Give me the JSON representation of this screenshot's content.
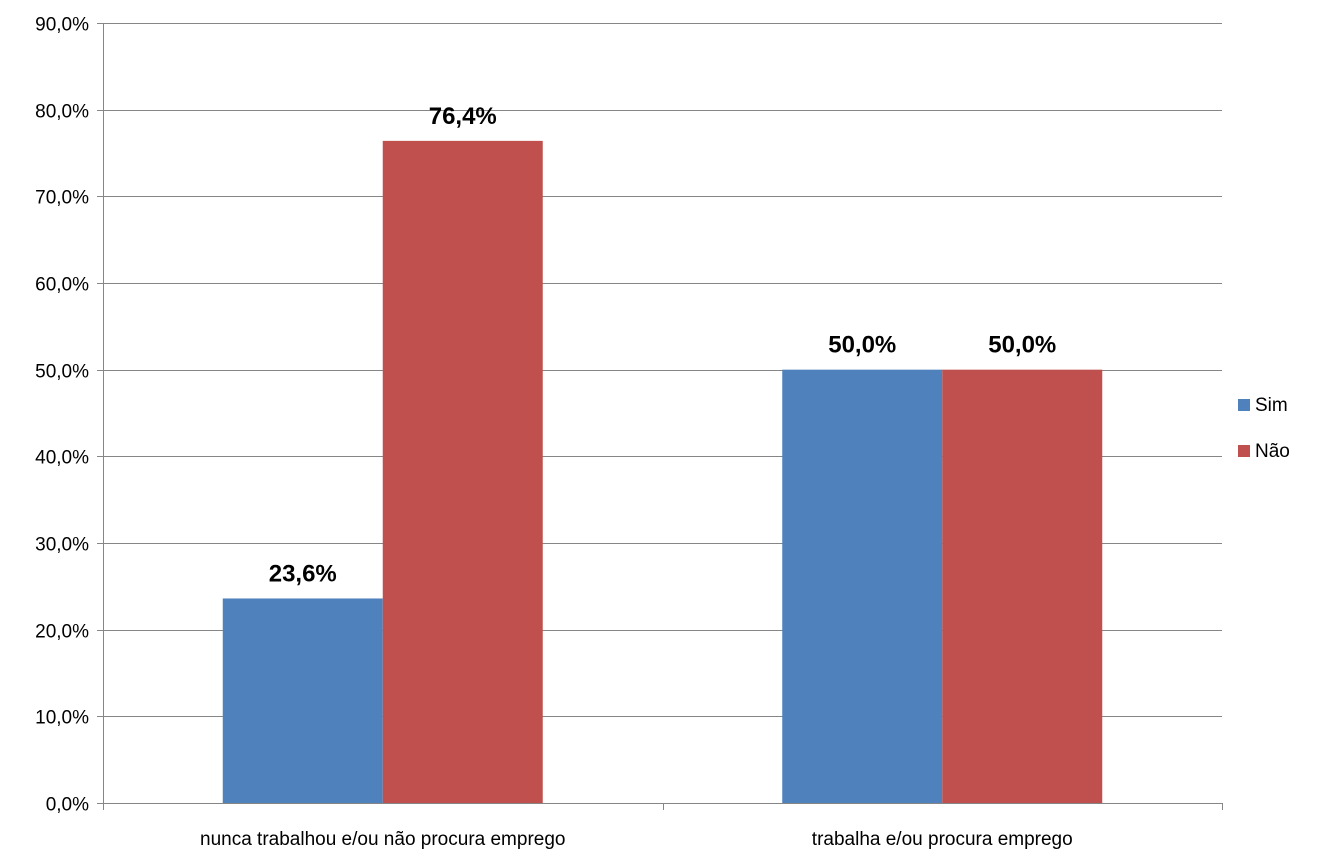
{
  "chart_data": {
    "type": "bar",
    "title": "",
    "xlabel": "",
    "ylabel": "",
    "categories": [
      "nunca trabalhou e/ou não procura emprego",
      "trabalha e/ou procura emprego"
    ],
    "series": [
      {
        "name": "Sim",
        "color": "#4F81BD",
        "values": [
          23.6,
          50.0
        ],
        "labels": [
          "23,6%",
          "50,0%"
        ]
      },
      {
        "name": "Não",
        "color": "#C0504D",
        "values": [
          76.4,
          50.0
        ],
        "labels": [
          "76,4%",
          "50,0%"
        ]
      }
    ],
    "ylim": [
      0,
      90
    ],
    "yticks": [
      0,
      10,
      20,
      30,
      40,
      50,
      60,
      70,
      80,
      90
    ],
    "ytick_labels": [
      "0,0%",
      "10,0%",
      "20,0%",
      "30,0%",
      "40,0%",
      "50,0%",
      "60,0%",
      "70,0%",
      "80,0%",
      "90,0%"
    ],
    "grid": true,
    "legend": "right"
  }
}
